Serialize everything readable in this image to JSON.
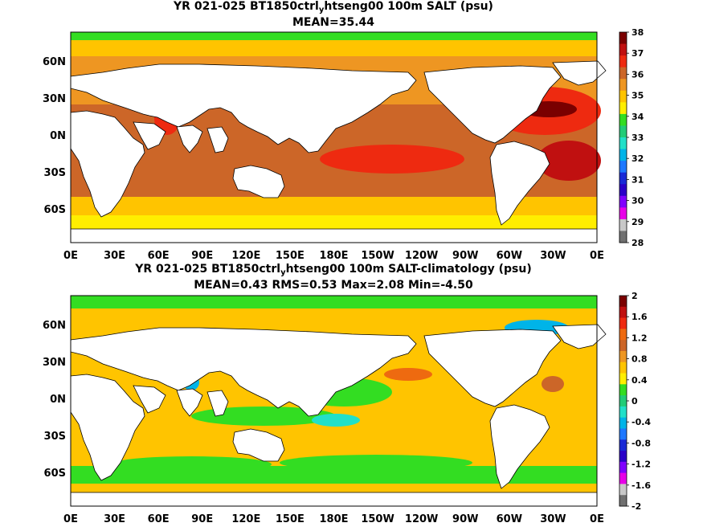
{
  "panels": [
    {
      "title_pre": "YR 021-025 BT1850ctrl",
      "title_sub": "y",
      "title_post": "htseng00 100m SALT (psu)",
      "stats": "MEAN=35.44",
      "colorbar_labels": [
        "38",
        "37",
        "36",
        "35",
        "34",
        "33",
        "32",
        "31",
        "30",
        "29",
        "28"
      ],
      "colorbar_colors": [
        "#7a0000",
        "#c01010",
        "#ee2a10",
        "#cc6628",
        "#ee9622",
        "#ffc400",
        "#ffee00",
        "#33dd22",
        "#22cc77",
        "#22e0c8",
        "#00b4e8",
        "#1e78ff",
        "#1a2ad6",
        "#2a00c8",
        "#8000ff",
        "#e800e8",
        "#c8c8c8",
        "#707070"
      ]
    },
    {
      "title_pre": "YR 021-025 BT1850ctrl",
      "title_sub": "y",
      "title_post": "htseng00 100m SALT-climatology (psu)",
      "stats": "MEAN=0.43   RMS=0.53   Max=2.08   Min=-4.50",
      "colorbar_labels": [
        "2",
        "1.6",
        "1.2",
        "0.8",
        "0.4",
        "0",
        "-0.4",
        "-0.8",
        "-1.2",
        "-1.6",
        "-2"
      ],
      "colorbar_colors": [
        "#7a0000",
        "#c01010",
        "#ee2a10",
        "#ee6a10",
        "#cc6628",
        "#ee9622",
        "#ffc400",
        "#ffee00",
        "#33dd22",
        "#22cc77",
        "#22e0c8",
        "#00b4e8",
        "#1e78ff",
        "#1a2ad6",
        "#2a00c8",
        "#8000ff",
        "#e800e8",
        "#c8c8c8",
        "#707070"
      ]
    }
  ],
  "lat_labels": [
    "60N",
    "30N",
    "0N",
    "30S",
    "60S"
  ],
  "lon_labels": [
    "0E",
    "30E",
    "60E",
    "90E",
    "120E",
    "150E",
    "180E",
    "150W",
    "120W",
    "90W",
    "60W",
    "30W",
    "0E"
  ]
}
